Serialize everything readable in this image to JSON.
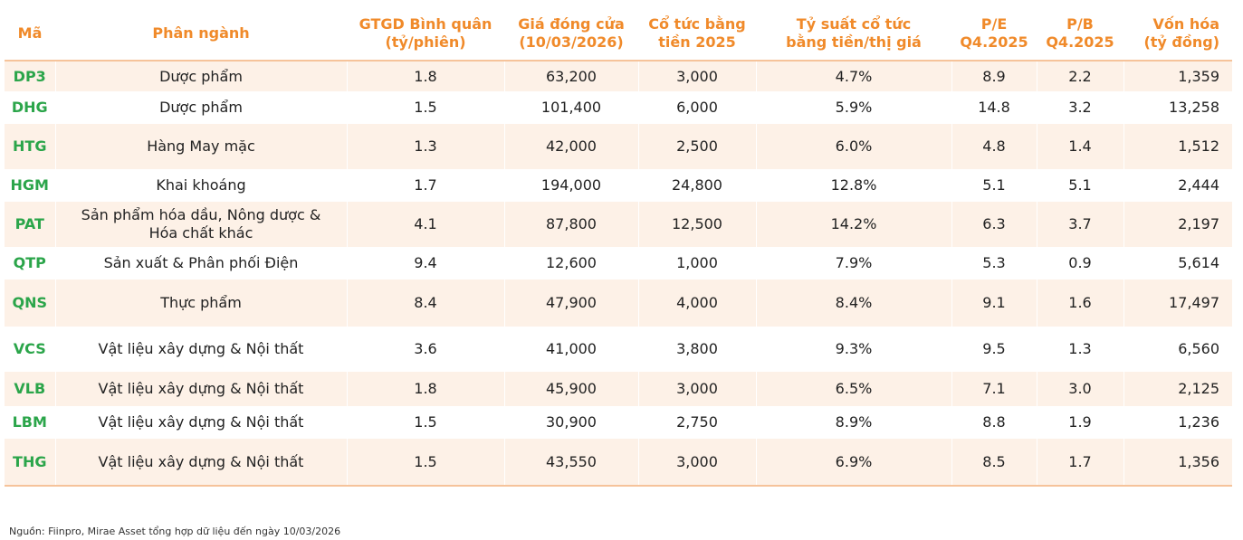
{
  "table": {
    "headers": [
      "Mã",
      "Phân ngành",
      "GTGD Bình quân\n(tỷ/phiên)",
      "Giá đóng cửa\n(10/03/2026)",
      "Cổ tức bằng\ntiền 2025",
      "Tỷ suất cổ tức\nbằng tiền/thị giá",
      "P/E\nQ4.2025",
      "P/B\nQ4.2025",
      "Vốn hóa\n(tỷ đồng)"
    ],
    "rows": [
      [
        "DP3",
        "Dược phẩm",
        "1.8",
        "63,200",
        "3,000",
        "4.7%",
        "8.9",
        "2.2",
        "1,359"
      ],
      [
        "DHG",
        "Dược phẩm",
        "1.5",
        "101,400",
        "6,000",
        "5.9%",
        "14.8",
        "3.2",
        "13,258"
      ],
      [
        "HTG",
        "Hàng May mặc",
        "1.3",
        "42,000",
        "2,500",
        "6.0%",
        "4.8",
        "1.4",
        "1,512"
      ],
      [
        "HGM",
        "Khai khoáng",
        "1.7",
        "194,000",
        "24,800",
        "12.8%",
        "5.1",
        "5.1",
        "2,444"
      ],
      [
        "PAT",
        "Sản phẩm hóa dầu, Nông dược &\nHóa chất khác",
        "4.1",
        "87,800",
        "12,500",
        "14.2%",
        "6.3",
        "3.7",
        "2,197"
      ],
      [
        "QTP",
        "Sản xuất & Phân phối Điện",
        "9.4",
        "12,600",
        "1,000",
        "7.9%",
        "5.3",
        "0.9",
        "5,614"
      ],
      [
        "QNS",
        "Thực phẩm",
        "8.4",
        "47,900",
        "4,000",
        "8.4%",
        "9.1",
        "1.6",
        "17,497"
      ],
      [
        "VCS",
        "Vật liệu xây dựng & Nội thất",
        "3.6",
        "41,000",
        "3,800",
        "9.3%",
        "9.5",
        "1.3",
        "6,560"
      ],
      [
        "VLB",
        "Vật liệu xây dựng & Nội thất",
        "1.8",
        "45,900",
        "3,000",
        "6.5%",
        "7.1",
        "3.0",
        "2,125"
      ],
      [
        "LBM",
        "Vật liệu xây dựng & Nội thất",
        "1.5",
        "30,900",
        "2,750",
        "8.9%",
        "8.8",
        "1.9",
        "1,236"
      ],
      [
        "THG",
        "Vật liệu xây dựng & Nội thất",
        "1.5",
        "43,550",
        "3,000",
        "6.9%",
        "8.5",
        "1.7",
        "1,356"
      ]
    ]
  },
  "source": "Nguồn: Fiinpro, Mirae Asset tổng hợp dữ liệu đến ngày 10/03/2026"
}
